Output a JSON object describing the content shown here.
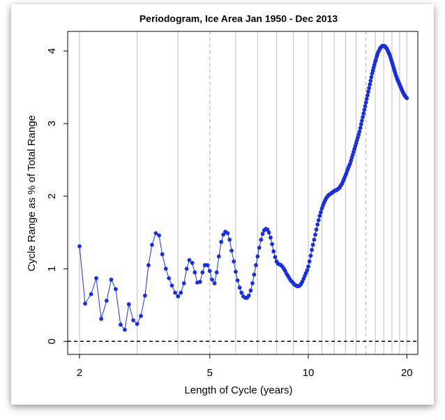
{
  "chart_data": {
    "type": "line",
    "title": "Periodogram, Ice Area Jan 1950 - Dec 2013",
    "x_label": "Length of Cycle (years)",
    "y_label": "Cycle Range as % of Total Range",
    "xlog": true,
    "xlim": [
      1.84,
      21.6
    ],
    "ylim": [
      -0.18,
      4.27
    ],
    "xticks": [
      2,
      5,
      10,
      20
    ],
    "yticks": [
      0,
      1,
      2,
      3,
      4
    ],
    "xgrid": [
      2,
      3,
      4,
      6,
      7,
      8,
      9,
      10,
      11,
      12,
      13,
      14,
      16,
      17,
      18,
      19,
      20
    ],
    "xgrid_dashed": [
      5,
      15
    ],
    "hline": 0,
    "color": "#1a2fd8",
    "x": [
      2,
      2.08,
      2.17,
      2.25,
      2.33,
      2.42,
      2.5,
      2.58,
      2.67,
      2.75,
      2.83,
      2.92,
      3,
      3.08,
      3.17,
      3.25,
      3.33,
      3.42,
      3.5,
      3.58,
      3.67,
      3.75,
      3.83,
      3.92,
      4,
      4.08,
      4.17,
      4.25,
      4.33,
      4.42,
      4.5,
      4.58,
      4.67,
      4.75,
      4.83,
      4.92,
      5,
      5.08,
      5.17,
      5.25,
      5.33,
      5.42,
      5.5,
      5.58,
      5.67,
      5.75,
      5.83,
      5.92,
      6,
      6.08,
      6.17,
      6.25,
      6.33,
      6.42,
      6.5,
      6.58,
      6.67,
      6.75,
      6.83,
      6.92,
      7,
      7.08,
      7.17,
      7.25,
      7.33,
      7.42,
      7.5,
      7.58,
      7.67,
      7.75,
      7.83,
      7.92,
      8,
      8.08,
      8.17,
      8.25,
      8.33,
      8.42,
      8.5,
      8.58,
      8.67,
      8.75,
      8.83,
      8.92,
      9,
      9.08,
      9.17,
      9.25,
      9.33,
      9.42,
      9.5,
      9.58,
      9.67,
      9.75,
      9.83,
      9.92,
      10,
      10.08,
      10.17,
      10.25,
      10.33,
      10.42,
      10.5,
      10.58,
      10.67,
      10.75,
      10.83,
      10.92,
      11,
      11.08,
      11.17,
      11.25,
      11.33,
      11.42,
      11.5,
      11.58,
      11.67,
      11.75,
      11.83,
      11.92,
      12,
      12.08,
      12.17,
      12.25,
      12.33,
      12.42,
      12.5,
      12.58,
      12.67,
      12.75,
      12.83,
      12.92,
      13,
      13.08,
      13.17,
      13.25,
      13.33,
      13.42,
      13.5,
      13.58,
      13.67,
      13.75,
      13.83,
      13.92,
      14,
      14.08,
      14.17,
      14.25,
      14.33,
      14.42,
      14.5,
      14.58,
      14.67,
      14.75,
      14.83,
      14.92,
      15,
      15.08,
      15.17,
      15.25,
      15.33,
      15.42,
      15.5,
      15.58,
      15.67,
      15.75,
      15.83,
      15.92,
      16,
      16.08,
      16.17,
      16.25,
      16.33,
      16.42,
      16.5,
      16.58,
      16.67,
      16.75,
      16.83,
      16.92,
      17,
      17.08,
      17.17,
      17.25,
      17.33,
      17.42,
      17.5,
      17.58,
      17.67,
      17.75,
      17.83,
      17.92,
      18,
      18.08,
      18.17,
      18.25,
      18.33,
      18.42,
      18.5,
      18.58,
      18.67,
      18.75,
      18.83,
      18.92,
      19,
      19.08,
      19.17,
      19.25,
      19.33,
      19.42,
      19.5,
      19.58,
      19.67,
      19.75,
      19.83,
      19.92,
      20
    ],
    "values": [
      1.31,
      0.52,
      0.65,
      0.87,
      0.31,
      0.56,
      0.85,
      0.72,
      0.23,
      0.16,
      0.51,
      0.29,
      0.24,
      0.35,
      0.63,
      1.05,
      1.33,
      1.49,
      1.46,
      1.2,
      1.0,
      0.87,
      0.77,
      0.67,
      0.62,
      0.67,
      0.8,
      1.0,
      1.12,
      1.08,
      0.95,
      0.81,
      0.82,
      0.95,
      1.05,
      1.05,
      0.97,
      0.85,
      0.8,
      0.95,
      1.17,
      1.37,
      1.47,
      1.51,
      1.49,
      1.4,
      1.25,
      1.1,
      0.96,
      0.84,
      0.74,
      0.67,
      0.62,
      0.6,
      0.6,
      0.63,
      0.7,
      0.8,
      0.92,
      1.05,
      1.17,
      1.29,
      1.4,
      1.48,
      1.53,
      1.55,
      1.54,
      1.5,
      1.43,
      1.34,
      1.24,
      1.16,
      1.1,
      1.07,
      1.06,
      1.05,
      1.03,
      1.0,
      0.97,
      0.93,
      0.9,
      0.87,
      0.84,
      0.82,
      0.8,
      0.78,
      0.77,
      0.76,
      0.76,
      0.77,
      0.79,
      0.82,
      0.86,
      0.9,
      0.94,
      0.98,
      1.03,
      1.1,
      1.18,
      1.26,
      1.33,
      1.4,
      1.47,
      1.54,
      1.61,
      1.67,
      1.73,
      1.78,
      1.83,
      1.87,
      1.91,
      1.94,
      1.97,
      1.99,
      2.01,
      2.02,
      2.03,
      2.04,
      2.05,
      2.06,
      2.07,
      2.08,
      2.08,
      2.09,
      2.1,
      2.11,
      2.13,
      2.15,
      2.17,
      2.2,
      2.23,
      2.26,
      2.29,
      2.32,
      2.36,
      2.39,
      2.42,
      2.45,
      2.49,
      2.53,
      2.57,
      2.61,
      2.65,
      2.69,
      2.73,
      2.77,
      2.81,
      2.85,
      2.89,
      2.94,
      2.99,
      3.04,
      3.09,
      3.14,
      3.19,
      3.24,
      3.29,
      3.34,
      3.39,
      3.44,
      3.49,
      3.54,
      3.59,
      3.64,
      3.69,
      3.73,
      3.77,
      3.81,
      3.85,
      3.88,
      3.92,
      3.95,
      3.98,
      4.0,
      4.02,
      4.04,
      4.05,
      4.06,
      4.07,
      4.07,
      4.07,
      4.07,
      4.06,
      4.05,
      4.04,
      4.02,
      4.0,
      3.98,
      3.96,
      3.94,
      3.91,
      3.88,
      3.85,
      3.82,
      3.79,
      3.76,
      3.73,
      3.7,
      3.67,
      3.65,
      3.62,
      3.6,
      3.58,
      3.56,
      3.54,
      3.52,
      3.5,
      3.48,
      3.46,
      3.44,
      3.42,
      3.41,
      3.39,
      3.38,
      3.37,
      3.36,
      3.35
    ]
  }
}
